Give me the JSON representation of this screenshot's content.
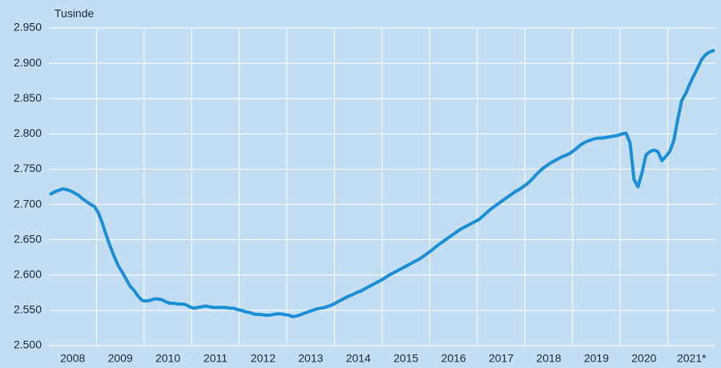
{
  "chart_data": {
    "type": "line",
    "y_unit_label": "Tusinde",
    "categories": [
      "2008",
      null,
      null,
      null,
      null,
      null,
      null,
      null,
      null,
      null,
      null,
      null,
      "2009",
      null,
      null,
      null,
      null,
      null,
      null,
      null,
      null,
      null,
      null,
      null,
      "2010",
      null,
      null,
      null,
      null,
      null,
      null,
      null,
      null,
      null,
      null,
      null,
      "2011",
      null,
      null,
      null,
      null,
      null,
      null,
      null,
      null,
      null,
      null,
      null,
      "2012",
      null,
      null,
      null,
      null,
      null,
      null,
      null,
      null,
      null,
      null,
      null,
      "2013",
      null,
      null,
      null,
      null,
      null,
      null,
      null,
      null,
      null,
      null,
      null,
      "2014",
      null,
      null,
      null,
      null,
      null,
      null,
      null,
      null,
      null,
      null,
      null,
      "2015",
      null,
      null,
      null,
      null,
      null,
      null,
      null,
      null,
      null,
      null,
      null,
      "2016",
      null,
      null,
      null,
      null,
      null,
      null,
      null,
      null,
      null,
      null,
      null,
      "2017",
      null,
      null,
      null,
      null,
      null,
      null,
      null,
      null,
      null,
      null,
      null,
      "2018",
      null,
      null,
      null,
      null,
      null,
      null,
      null,
      null,
      null,
      null,
      null,
      "2019",
      null,
      null,
      null,
      null,
      null,
      null,
      null,
      null,
      null,
      null,
      null,
      "2020",
      null,
      null,
      null,
      null,
      null,
      null,
      null,
      null,
      null,
      null,
      null,
      "2021*",
      null,
      null,
      null,
      null,
      null,
      null,
      null,
      null,
      null,
      null,
      null
    ],
    "values": [
      2715,
      2718,
      2720,
      2722,
      2721,
      2719,
      2716,
      2713,
      2708,
      2704,
      2700,
      2697,
      2688,
      2673,
      2656,
      2640,
      2626,
      2613,
      2604,
      2594,
      2584,
      2578,
      2570,
      2564,
      2563,
      2564,
      2566,
      2566,
      2565,
      2562,
      2560,
      2560,
      2559,
      2559,
      2558,
      2555,
      2553,
      2554,
      2555,
      2556,
      2555,
      2554,
      2554,
      2554,
      2554,
      2553,
      2553,
      2551,
      2550,
      2548,
      2547,
      2545,
      2544,
      2544,
      2543,
      2543,
      2544,
      2545,
      2545,
      2544,
      2543,
      2541,
      2542,
      2544,
      2546,
      2548,
      2550,
      2552,
      2553,
      2554,
      2556,
      2558,
      2561,
      2564,
      2567,
      2570,
      2572,
      2575,
      2577,
      2580,
      2583,
      2586,
      2589,
      2592,
      2595,
      2599,
      2602,
      2605,
      2608,
      2611,
      2614,
      2617,
      2620,
      2623,
      2627,
      2631,
      2635,
      2640,
      2644,
      2648,
      2652,
      2656,
      2660,
      2664,
      2667,
      2670,
      2673,
      2676,
      2679,
      2684,
      2689,
      2694,
      2698,
      2702,
      2706,
      2710,
      2714,
      2718,
      2721,
      2725,
      2729,
      2734,
      2740,
      2746,
      2751,
      2755,
      2759,
      2762,
      2765,
      2768,
      2770,
      2773,
      2777,
      2782,
      2786,
      2789,
      2791,
      2793,
      2794,
      2794,
      2795,
      2796,
      2797,
      2798,
      2800,
      2801,
      2787,
      2735,
      2725,
      2745,
      2770,
      2775,
      2777,
      2775,
      2762,
      2768,
      2775,
      2790,
      2820,
      2847,
      2857,
      2870,
      2882,
      2893,
      2905,
      2912,
      2916,
      2918
    ],
    "color": "#1a8fd6",
    "ylim": [
      2500,
      2950
    ],
    "yticks": [
      {
        "value": 2500,
        "label": "2.500"
      },
      {
        "value": 2550,
        "label": "2.550"
      },
      {
        "value": 2600,
        "label": "2.600"
      },
      {
        "value": 2650,
        "label": "2.650"
      },
      {
        "value": 2700,
        "label": "2.700"
      },
      {
        "value": 2750,
        "label": "2.750"
      },
      {
        "value": 2800,
        "label": "2.800"
      },
      {
        "value": 2850,
        "label": "2.850"
      },
      {
        "value": 2900,
        "label": "2.900"
      },
      {
        "value": 2950,
        "label": "2.950"
      }
    ],
    "grid": true
  }
}
